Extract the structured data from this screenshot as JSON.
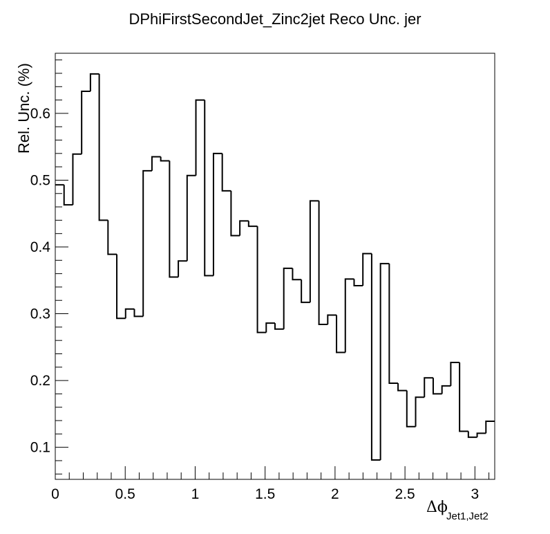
{
  "chart_data": {
    "type": "histogram-step",
    "title": "DPhiFirstSecondJet_Zinc2jet Reco Unc. jer",
    "xlabel_symbol": "Δϕ",
    "xlabel_subscript": "Jet1,Jet2",
    "ylabel": "Rel. Unc. (%)",
    "xlim": [
      0,
      3.14159
    ],
    "ylim": [
      0.052,
      0.69
    ],
    "xticks": [
      0,
      0.5,
      1,
      1.5,
      2,
      2.5,
      3
    ],
    "xtick_labels": [
      "0",
      "0.5",
      "1",
      "1.5",
      "2",
      "2.5",
      "3"
    ],
    "yticks": [
      0.1,
      0.2,
      0.3,
      0.4,
      0.5,
      0.6
    ],
    "ytick_labels": [
      "0.1",
      "0.2",
      "0.3",
      "0.4",
      "0.5",
      "0.6"
    ],
    "nbins": 50,
    "values": [
      0.493,
      0.463,
      0.539,
      0.633,
      0.659,
      0.44,
      0.389,
      0.293,
      0.307,
      0.296,
      0.514,
      0.535,
      0.529,
      0.355,
      0.379,
      0.507,
      0.62,
      0.357,
      0.54,
      0.484,
      0.417,
      0.439,
      0.431,
      0.272,
      0.286,
      0.277,
      0.368,
      0.351,
      0.317,
      0.469,
      0.284,
      0.298,
      0.242,
      0.352,
      0.342,
      0.39,
      0.081,
      0.375,
      0.196,
      0.185,
      0.131,
      0.175,
      0.204,
      0.18,
      0.192,
      0.227,
      0.124,
      0.115,
      0.121,
      0.139
    ],
    "line_color": "#000000",
    "grid": false
  }
}
